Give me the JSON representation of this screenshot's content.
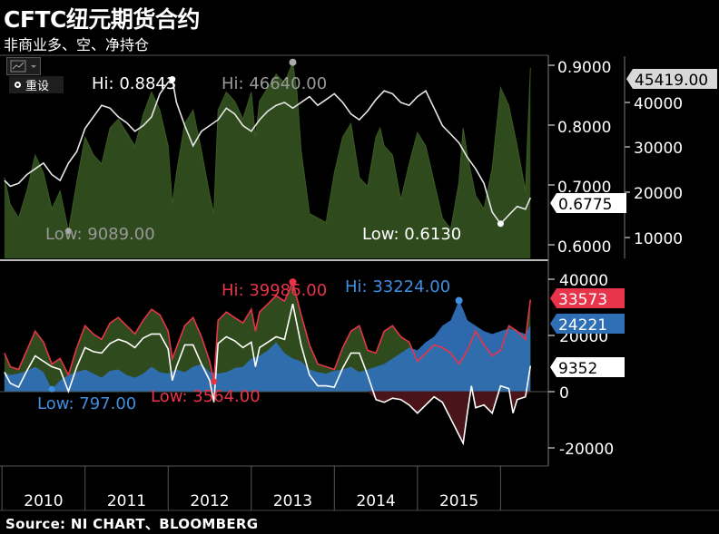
{
  "header": {
    "title": "CFTC纽元期货合约",
    "subtitle": "非商业多、空、净持仓",
    "source": "Source: NI CHART、BLOOMBERG"
  },
  "toolbar": {
    "reset_label": "重设",
    "chart_type_icon": "line-chart-icon"
  },
  "colors": {
    "background": "#000000",
    "open_interest_fill": "#2f4a1c",
    "price_line": "#ffffff",
    "long_line": "#e8344a",
    "short_fill": "#2f6fb5",
    "net_line": "#ffffff",
    "net_negative_fill": "#4a1518"
  },
  "chart_data": [
    {
      "type": "area",
      "panel": "top",
      "x_ticks": [
        "2010",
        "2011",
        "2012",
        "2013",
        "2014",
        "2015"
      ],
      "y_left_ticks": [
        "10000",
        "20000",
        "30000",
        "40000"
      ],
      "y_right_ticks": [
        "0.6000",
        "0.7000",
        "0.8000",
        "0.9000"
      ],
      "ylim_left": [
        3000,
        48000
      ],
      "ylim_right": [
        0.57,
        0.92
      ],
      "x_range": [
        2009.52,
        2015.9
      ],
      "series": [
        {
          "axis": "left",
          "style": "area",
          "last": "45419.00",
          "hi_label": "Hi: 46640.00",
          "low_label": "Low: 9089.00",
          "x": [
            2009.53,
            2009.6,
            2009.7,
            2009.8,
            2009.9,
            2010.0,
            2010.1,
            2010.2,
            2010.3,
            2010.4,
            2010.5,
            2010.6,
            2010.7,
            2010.8,
            2010.9,
            2011.0,
            2011.1,
            2011.2,
            2011.3,
            2011.4,
            2011.5,
            2011.55,
            2011.6,
            2011.7,
            2011.8,
            2011.9,
            2012.0,
            2012.05,
            2012.1,
            2012.2,
            2012.3,
            2012.4,
            2012.5,
            2012.55,
            2012.6,
            2012.7,
            2012.8,
            2012.9,
            2013.0,
            2013.05,
            2013.1,
            2013.2,
            2013.3,
            2013.4,
            2013.5,
            2013.6,
            2013.7,
            2013.8,
            2013.9,
            2014.0,
            2014.05,
            2014.1,
            2014.2,
            2014.3,
            2014.4,
            2014.5,
            2014.6,
            2014.7,
            2014.8,
            2014.9,
            2015.0,
            2015.05,
            2015.1,
            2015.2,
            2015.3,
            2015.4,
            2015.5,
            2015.6,
            2015.7,
            2015.8,
            2015.86
          ],
          "values": [
            21000,
            15000,
            12000,
            18000,
            26000,
            22000,
            14000,
            18000,
            9089,
            20000,
            30000,
            26000,
            24000,
            32000,
            34000,
            31000,
            28000,
            35000,
            40000,
            36000,
            28000,
            15000,
            22000,
            33000,
            36000,
            27000,
            17000,
            13000,
            36000,
            40000,
            38000,
            34000,
            40000,
            30000,
            38000,
            41000,
            44000,
            42000,
            46640,
            40000,
            27000,
            13000,
            12000,
            11000,
            22000,
            30000,
            33000,
            21000,
            19000,
            30000,
            32000,
            28000,
            26000,
            16000,
            24000,
            31000,
            28000,
            20000,
            12000,
            9500,
            20000,
            32000,
            26000,
            17000,
            14000,
            23000,
            41000,
            37000,
            28000,
            18000,
            45419
          ]
        },
        {
          "axis": "right",
          "style": "line",
          "last": "0.6775",
          "hi_label": "Hi: 0.8843",
          "low_label": "Low: 0.6130",
          "x": [
            2009.53,
            2009.6,
            2009.7,
            2009.8,
            2009.9,
            2010.0,
            2010.1,
            2010.2,
            2010.3,
            2010.4,
            2010.5,
            2010.6,
            2010.7,
            2010.8,
            2010.9,
            2011.0,
            2011.1,
            2011.2,
            2011.3,
            2011.4,
            2011.5,
            2011.55,
            2011.6,
            2011.7,
            2011.8,
            2011.9,
            2012.0,
            2012.1,
            2012.2,
            2012.3,
            2012.4,
            2012.5,
            2012.6,
            2012.7,
            2012.8,
            2012.9,
            2013.0,
            2013.1,
            2013.2,
            2013.3,
            2013.4,
            2013.5,
            2013.6,
            2013.7,
            2013.8,
            2013.9,
            2014.0,
            2014.1,
            2014.2,
            2014.3,
            2014.4,
            2014.5,
            2014.6,
            2014.7,
            2014.8,
            2014.9,
            2015.0,
            2015.1,
            2015.2,
            2015.3,
            2015.4,
            2015.5,
            2015.6,
            2015.7,
            2015.8,
            2015.86
          ],
          "values": [
            0.705,
            0.695,
            0.7,
            0.715,
            0.725,
            0.735,
            0.715,
            0.705,
            0.735,
            0.755,
            0.795,
            0.815,
            0.835,
            0.83,
            0.815,
            0.805,
            0.79,
            0.8,
            0.815,
            0.855,
            0.875,
            0.88,
            0.84,
            0.8,
            0.765,
            0.79,
            0.8,
            0.81,
            0.83,
            0.82,
            0.8,
            0.79,
            0.81,
            0.825,
            0.835,
            0.84,
            0.83,
            0.84,
            0.85,
            0.835,
            0.845,
            0.855,
            0.84,
            0.82,
            0.81,
            0.825,
            0.845,
            0.86,
            0.855,
            0.84,
            0.835,
            0.85,
            0.86,
            0.83,
            0.8,
            0.785,
            0.77,
            0.745,
            0.725,
            0.7,
            0.65,
            0.63,
            0.645,
            0.66,
            0.655,
            0.675
          ]
        }
      ],
      "annotations": [
        "Hi: 0.8843",
        "Hi: 46640.00",
        "Low: 9089.00",
        "Low: 0.6130"
      ]
    },
    {
      "type": "area",
      "panel": "bottom",
      "y_ticks": [
        "-20000",
        "0",
        "20000",
        "40000"
      ],
      "ylim": [
        -27000,
        47000
      ],
      "x_range": [
        2009.52,
        2015.9
      ],
      "series": [
        {
          "style": "line",
          "last": "33573",
          "hi_label": "Hi: 39986.00",
          "low_label": "Low: 3564.00",
          "x": [
            2009.53,
            2009.6,
            2009.7,
            2009.8,
            2009.9,
            2010.0,
            2010.1,
            2010.2,
            2010.3,
            2010.4,
            2010.5,
            2010.6,
            2010.7,
            2010.8,
            2010.9,
            2011.0,
            2011.1,
            2011.2,
            2011.3,
            2011.4,
            2011.5,
            2011.55,
            2011.6,
            2011.7,
            2011.8,
            2011.9,
            2012.0,
            2012.05,
            2012.1,
            2012.2,
            2012.3,
            2012.4,
            2012.5,
            2012.55,
            2012.6,
            2012.7,
            2012.8,
            2012.9,
            2013.0,
            2013.1,
            2013.2,
            2013.3,
            2013.4,
            2013.5,
            2013.6,
            2013.7,
            2013.8,
            2013.9,
            2014.0,
            2014.1,
            2014.2,
            2014.3,
            2014.4,
            2014.5,
            2014.6,
            2014.7,
            2014.8,
            2014.9,
            2015.0,
            2015.1,
            2015.2,
            2015.3,
            2015.4,
            2015.5,
            2015.6,
            2015.7,
            2015.8,
            2015.86
          ],
          "values": [
            14000,
            9000,
            8000,
            15000,
            22000,
            18000,
            10000,
            12000,
            6000,
            16000,
            24000,
            21000,
            19000,
            25000,
            27000,
            24000,
            21000,
            26000,
            30000,
            28000,
            22000,
            12000,
            16000,
            24000,
            27000,
            20000,
            11000,
            3564,
            26000,
            29000,
            27000,
            25000,
            30000,
            22000,
            29000,
            32000,
            35000,
            33000,
            39986,
            28000,
            17000,
            10000,
            9000,
            8000,
            16000,
            22000,
            24000,
            15000,
            14000,
            22000,
            24000,
            20000,
            18000,
            11000,
            14000,
            17000,
            16000,
            14000,
            10000,
            15000,
            22000,
            17000,
            13000,
            15000,
            24000,
            22000,
            19000,
            33573
          ]
        },
        {
          "style": "area",
          "last": "24221",
          "hi_label": "Hi: 33224.00",
          "low_label": "Low: 797.00",
          "x": [
            2009.53,
            2009.6,
            2009.7,
            2009.8,
            2009.9,
            2010.0,
            2010.1,
            2010.2,
            2010.3,
            2010.4,
            2010.5,
            2010.6,
            2010.7,
            2010.8,
            2010.9,
            2011.0,
            2011.1,
            2011.2,
            2011.3,
            2011.4,
            2011.5,
            2011.6,
            2011.7,
            2011.8,
            2011.9,
            2012.0,
            2012.1,
            2012.2,
            2012.3,
            2012.4,
            2012.5,
            2012.6,
            2012.7,
            2012.8,
            2012.9,
            2013.0,
            2013.1,
            2013.2,
            2013.3,
            2013.4,
            2013.5,
            2013.6,
            2013.7,
            2013.8,
            2013.9,
            2014.0,
            2014.1,
            2014.2,
            2014.3,
            2014.4,
            2014.5,
            2014.6,
            2014.7,
            2014.8,
            2014.9,
            2015.0,
            2015.05,
            2015.1,
            2015.2,
            2015.3,
            2015.4,
            2015.5,
            2015.6,
            2015.7,
            2015.8,
            2015.86
          ],
          "values": [
            7000,
            6000,
            6500,
            7500,
            9000,
            7000,
            797,
            4000,
            6000,
            7000,
            8000,
            6500,
            5000,
            7500,
            8000,
            6000,
            5000,
            6500,
            9000,
            7000,
            6500,
            8000,
            7000,
            9000,
            10000,
            7000,
            6500,
            7000,
            8500,
            9000,
            12000,
            13000,
            15000,
            18000,
            14000,
            12000,
            11000,
            8000,
            7000,
            6500,
            7500,
            8000,
            9000,
            7000,
            8000,
            9000,
            10000,
            12000,
            14000,
            16000,
            15000,
            18000,
            20000,
            24000,
            26000,
            33224,
            30000,
            26000,
            24000,
            22000,
            21000,
            22000,
            23000,
            22000,
            21000,
            24221
          ]
        },
        {
          "style": "line",
          "last": "9352",
          "x": [
            2009.53,
            2009.6,
            2009.7,
            2009.8,
            2009.9,
            2010.0,
            2010.1,
            2010.2,
            2010.3,
            2010.4,
            2010.5,
            2010.6,
            2010.7,
            2010.8,
            2010.9,
            2011.0,
            2011.1,
            2011.2,
            2011.3,
            2011.4,
            2011.5,
            2011.55,
            2011.6,
            2011.7,
            2011.8,
            2011.9,
            2012.0,
            2012.05,
            2012.1,
            2012.2,
            2012.3,
            2012.4,
            2012.5,
            2012.55,
            2012.6,
            2012.7,
            2012.8,
            2012.9,
            2013.0,
            2013.1,
            2013.2,
            2013.3,
            2013.4,
            2013.5,
            2013.6,
            2013.7,
            2013.8,
            2013.9,
            2014.0,
            2014.1,
            2014.2,
            2014.3,
            2014.4,
            2014.5,
            2014.6,
            2014.7,
            2014.8,
            2014.9,
            2015.0,
            2015.05,
            2015.1,
            2015.15,
            2015.2,
            2015.3,
            2015.4,
            2015.5,
            2015.6,
            2015.65,
            2015.7,
            2015.8,
            2015.86
          ],
          "values": [
            7000,
            3000,
            1500,
            7500,
            13000,
            11000,
            9000,
            8000,
            0,
            9000,
            16000,
            14500,
            14000,
            17500,
            19000,
            18000,
            16000,
            19500,
            21000,
            21000,
            15500,
            4000,
            9000,
            17000,
            17000,
            10000,
            4000,
            -4000,
            17500,
            20000,
            18500,
            16000,
            18000,
            9000,
            16000,
            18000,
            20000,
            19000,
            32000,
            17000,
            6000,
            2000,
            2000,
            1500,
            8500,
            14000,
            14000,
            6000,
            -3000,
            -4000,
            -2500,
            -3000,
            -5000,
            -8000,
            -5000,
            -2000,
            -4000,
            -10000,
            -16000,
            -19000,
            -8000,
            2000,
            -6000,
            -5000,
            -8000,
            2000,
            1000,
            -8000,
            -3000,
            -2000,
            9352
          ]
        }
      ],
      "annotations": [
        "Hi: 39986.00",
        "Hi: 33224.00",
        "Low: 797.00",
        "Low: 3564.00"
      ]
    }
  ]
}
